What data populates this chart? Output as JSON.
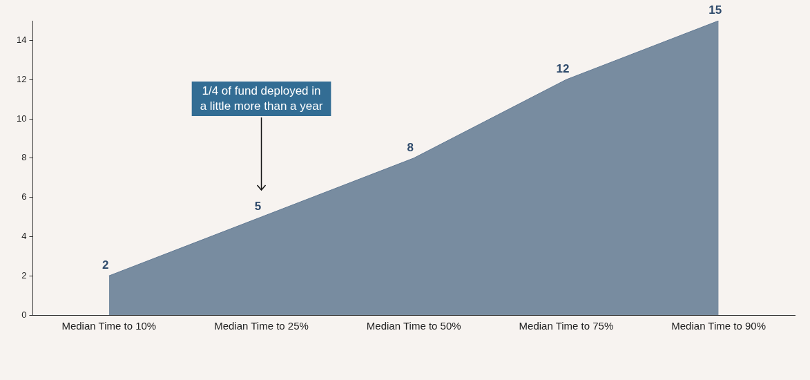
{
  "chart_data": {
    "type": "area",
    "categories": [
      "Median Time to 10%",
      "Median Time to 25%",
      "Median Time to 50%",
      "Median Time to 75%",
      "Median Time to 90%"
    ],
    "values": [
      2,
      5,
      8,
      12,
      15
    ],
    "color": "#788ca0",
    "ylim": [
      0,
      15
    ],
    "yticks": [
      0,
      2,
      4,
      6,
      8,
      10,
      12,
      14
    ],
    "grid": false,
    "legend": false,
    "data_labels": true,
    "marker": "none",
    "annotations": [
      "1/4 of fund deployed in a little more than a year"
    ]
  }
}
